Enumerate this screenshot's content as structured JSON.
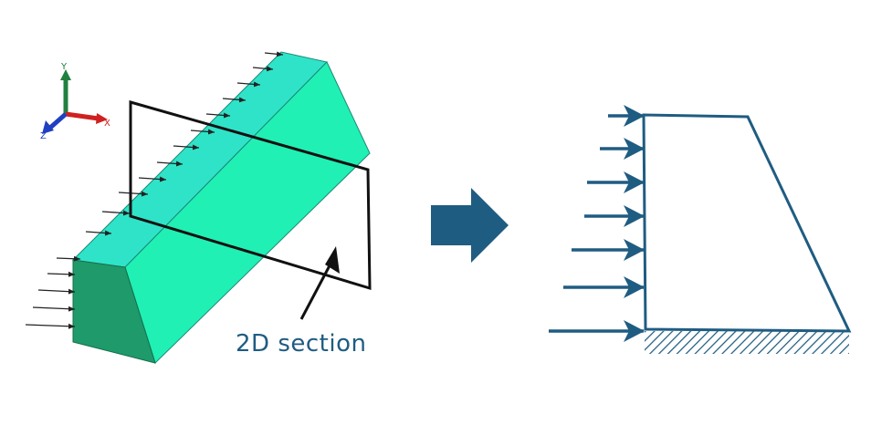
{
  "caption": "2D section",
  "axes": {
    "x": "X",
    "y": "Y",
    "z": "Z"
  },
  "colors": {
    "face_top": "#2fe3c8",
    "face_front": "#20f0b4",
    "face_end": "#1f9a6a",
    "edge": "#101010",
    "accent": "#1f5c82",
    "axis_x": "#d02020",
    "axis_y": "#208040",
    "axis_z": "#2040c0"
  },
  "icons": {
    "arrow": "right-arrow-icon",
    "axis": "axis-triad-icon"
  }
}
